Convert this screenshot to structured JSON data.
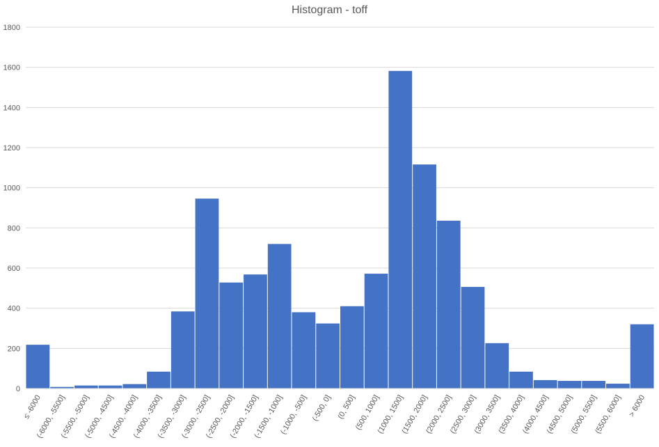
{
  "chart_data": {
    "type": "bar",
    "title": "Histogram - toff",
    "xlabel": "",
    "ylabel": "",
    "ylim": [
      0,
      1800
    ],
    "yticks": [
      0,
      200,
      400,
      600,
      800,
      1000,
      1200,
      1400,
      1600,
      1800
    ],
    "grid": true,
    "bar_color": "#4472C4",
    "categories": [
      "≤ -6000",
      "(-6000, -5500]",
      "(-5500, -5000]",
      "(-5000, -4500]",
      "(-4500, -4000]",
      "(-4000, -3500]",
      "(-3500, -3000]",
      "(-3000, -2500]",
      "(-2500, -2000]",
      "(-2000, -1500]",
      "(-1500, -1000]",
      "(-1000, -500]",
      "(-500, 0]",
      "(0, 500]",
      "(500, 1000]",
      "(1000, 1500]",
      "(1500, 2000]",
      "(2000, 2500]",
      "(2500, 3000]",
      "(3000, 3500]",
      "(3500, 4000]",
      "(4000, 4500]",
      "(4500, 5000]",
      "(5000, 5500]",
      "(5500, 6000]",
      "> 6000"
    ],
    "values": [
      218,
      8,
      15,
      15,
      22,
      84,
      384,
      946,
      528,
      568,
      720,
      380,
      324,
      410,
      572,
      1582,
      1116,
      836,
      506,
      226,
      84,
      42,
      38,
      38,
      24,
      320
    ]
  }
}
